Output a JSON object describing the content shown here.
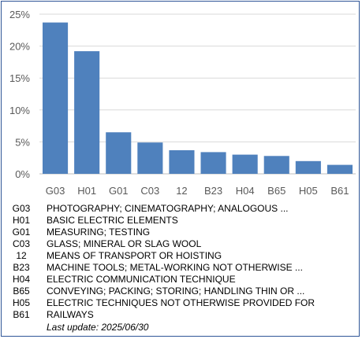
{
  "chart_data": {
    "type": "bar",
    "categories": [
      "G03",
      "H01",
      "G01",
      "C03",
      "12",
      "B23",
      "H04",
      "B65",
      "H05",
      "B61"
    ],
    "values": [
      23.7,
      19.2,
      6.5,
      4.9,
      3.7,
      3.4,
      3.0,
      2.8,
      2.0,
      1.4
    ],
    "ylim": [
      0,
      25
    ],
    "yticks": [
      "0%",
      "5%",
      "10%",
      "15%",
      "20%",
      "25%"
    ],
    "bar_color": "#4f81bd",
    "grid": true,
    "gridline_color": "#d9d9d9"
  },
  "legend": [
    {
      "code": "G03",
      "desc": "PHOTOGRAPHY; CINEMATOGRAPHY; ANALOGOUS ..."
    },
    {
      "code": "H01",
      "desc": "BASIC ELECTRIC ELEMENTS"
    },
    {
      "code": "G01",
      "desc": "MEASURING; TESTING"
    },
    {
      "code": "C03",
      "desc": "GLASS; MINERAL OR SLAG WOOL"
    },
    {
      "code": "12",
      "desc": "MEANS OF TRANSPORT OR HOISTING"
    },
    {
      "code": "B23",
      "desc": "MACHINE TOOLS; METAL-WORKING NOT OTHERWISE ..."
    },
    {
      "code": "H04",
      "desc": "ELECTRIC COMMUNICATION TECHNIQUE"
    },
    {
      "code": "B65",
      "desc": "CONVEYING; PACKING; STORING; HANDLING THIN OR ..."
    },
    {
      "code": "H05",
      "desc": "ELECTRIC TECHNIQUES NOT OTHERWISE PROVIDED FOR"
    },
    {
      "code": "B61",
      "desc": "RAILWAYS"
    }
  ],
  "footer": {
    "last_update": "Last update:  2025/06/30"
  }
}
